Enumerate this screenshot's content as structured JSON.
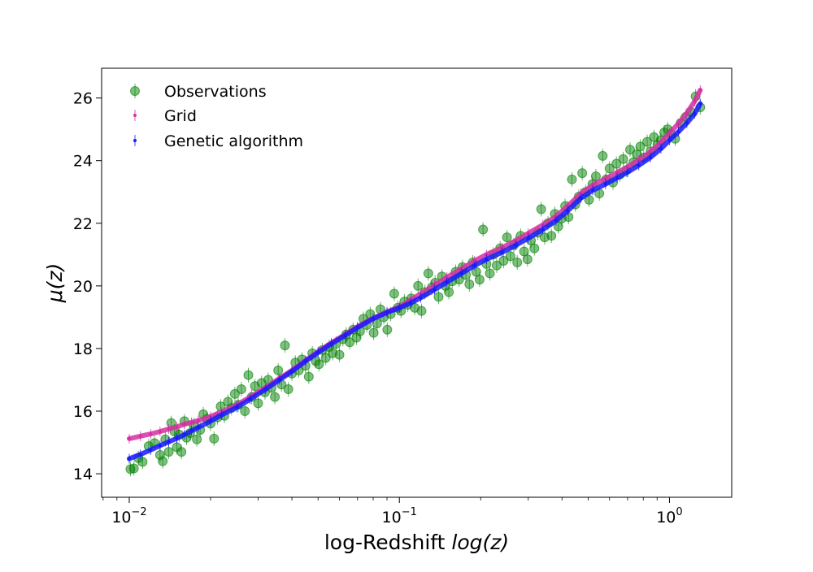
{
  "chart_data": {
    "type": "scatter",
    "xscale": "log",
    "xlabel_text": "log-Redshift ",
    "xlabel_math": "log(z)",
    "ylabel_math": "μ(z)",
    "xlim": [
      0.0079,
      1.7
    ],
    "ylim": [
      13.25,
      26.95
    ],
    "xticks": [
      {
        "value": 0.01,
        "base": "10",
        "exp": "−2"
      },
      {
        "value": 0.1,
        "base": "10",
        "exp": "−1"
      },
      {
        "value": 1.0,
        "base": "10",
        "exp": "0"
      }
    ],
    "yticks": [
      14,
      16,
      18,
      20,
      22,
      24,
      26
    ],
    "legend": {
      "position": "upper left",
      "frame": false
    },
    "series": [
      {
        "name": "Observations",
        "color": "#008000",
        "marker": "circle",
        "points": [
          [
            0.0101,
            14.15
          ],
          [
            0.0104,
            14.17
          ],
          [
            0.0108,
            14.5
          ],
          [
            0.0112,
            14.38
          ],
          [
            0.0118,
            14.88
          ],
          [
            0.0124,
            14.98
          ],
          [
            0.013,
            14.6
          ],
          [
            0.0133,
            14.4
          ],
          [
            0.0136,
            15.1
          ],
          [
            0.014,
            14.7
          ],
          [
            0.0143,
            15.62
          ],
          [
            0.0147,
            15.35
          ],
          [
            0.015,
            14.85
          ],
          [
            0.0153,
            15.25
          ],
          [
            0.0156,
            14.7
          ],
          [
            0.016,
            15.68
          ],
          [
            0.0163,
            15.15
          ],
          [
            0.0168,
            15.3
          ],
          [
            0.0173,
            15.55
          ],
          [
            0.0178,
            15.1
          ],
          [
            0.0183,
            15.4
          ],
          [
            0.0188,
            15.9
          ],
          [
            0.0194,
            15.75
          ],
          [
            0.02,
            15.6
          ],
          [
            0.0206,
            15.12
          ],
          [
            0.0212,
            15.8
          ],
          [
            0.0218,
            16.15
          ],
          [
            0.0225,
            15.85
          ],
          [
            0.0232,
            16.3
          ],
          [
            0.0239,
            16.1
          ],
          [
            0.0246,
            16.55
          ],
          [
            0.0253,
            16.2
          ],
          [
            0.026,
            16.7
          ],
          [
            0.0268,
            16.0
          ],
          [
            0.0276,
            17.15
          ],
          [
            0.0284,
            16.45
          ],
          [
            0.0292,
            16.8
          ],
          [
            0.03,
            16.25
          ],
          [
            0.0309,
            16.9
          ],
          [
            0.0318,
            16.6
          ],
          [
            0.0327,
            17.0
          ],
          [
            0.0336,
            16.75
          ],
          [
            0.0346,
            16.45
          ],
          [
            0.0356,
            17.3
          ],
          [
            0.0366,
            16.85
          ],
          [
            0.0377,
            18.1
          ],
          [
            0.0388,
            16.7
          ],
          [
            0.04,
            17.2
          ],
          [
            0.0412,
            17.55
          ],
          [
            0.0424,
            17.3
          ],
          [
            0.0436,
            17.65
          ],
          [
            0.0449,
            17.45
          ],
          [
            0.0462,
            17.1
          ],
          [
            0.0476,
            17.85
          ],
          [
            0.049,
            17.6
          ],
          [
            0.0504,
            17.5
          ],
          [
            0.0519,
            17.95
          ],
          [
            0.0534,
            17.7
          ],
          [
            0.055,
            18.05
          ],
          [
            0.0566,
            17.85
          ],
          [
            0.0583,
            18.15
          ],
          [
            0.06,
            17.8
          ],
          [
            0.0618,
            18.3
          ],
          [
            0.0636,
            18.45
          ],
          [
            0.0655,
            18.2
          ],
          [
            0.0674,
            18.6
          ],
          [
            0.0694,
            18.35
          ],
          [
            0.0715,
            18.55
          ],
          [
            0.0736,
            18.95
          ],
          [
            0.0758,
            18.75
          ],
          [
            0.078,
            19.1
          ],
          [
            0.0803,
            18.5
          ],
          [
            0.0827,
            18.8
          ],
          [
            0.0851,
            19.25
          ],
          [
            0.0876,
            19.0
          ],
          [
            0.0902,
            18.6
          ],
          [
            0.0929,
            19.1
          ],
          [
            0.0957,
            19.75
          ],
          [
            0.0985,
            19.3
          ],
          [
            0.1014,
            19.2
          ],
          [
            0.1044,
            19.5
          ],
          [
            0.1075,
            19.4
          ],
          [
            0.1107,
            19.6
          ],
          [
            0.114,
            19.3
          ],
          [
            0.1173,
            20.0
          ],
          [
            0.1208,
            19.2
          ],
          [
            0.1243,
            19.8
          ],
          [
            0.128,
            20.4
          ],
          [
            0.1318,
            19.95
          ],
          [
            0.1357,
            20.1
          ],
          [
            0.1397,
            19.65
          ],
          [
            0.1438,
            20.3
          ],
          [
            0.1481,
            20.0
          ],
          [
            0.1525,
            19.8
          ],
          [
            0.157,
            20.15
          ],
          [
            0.1616,
            20.45
          ],
          [
            0.1664,
            20.2
          ],
          [
            0.1713,
            20.6
          ],
          [
            0.1764,
            20.35
          ],
          [
            0.1816,
            20.05
          ],
          [
            0.187,
            20.75
          ],
          [
            0.1925,
            20.45
          ],
          [
            0.1982,
            20.2
          ],
          [
            0.2041,
            21.8
          ],
          [
            0.2101,
            20.7
          ],
          [
            0.2163,
            20.4
          ],
          [
            0.2227,
            21.0
          ],
          [
            0.2293,
            20.65
          ],
          [
            0.2361,
            21.2
          ],
          [
            0.2431,
            20.8
          ],
          [
            0.2503,
            21.55
          ],
          [
            0.2577,
            20.95
          ],
          [
            0.2653,
            21.3
          ],
          [
            0.2732,
            20.75
          ],
          [
            0.2813,
            21.6
          ],
          [
            0.2896,
            21.1
          ],
          [
            0.2981,
            20.85
          ],
          [
            0.307,
            21.45
          ],
          [
            0.316,
            21.2
          ],
          [
            0.3254,
            21.7
          ],
          [
            0.335,
            22.45
          ],
          [
            0.3449,
            21.55
          ],
          [
            0.3551,
            22.0
          ],
          [
            0.3656,
            21.6
          ],
          [
            0.3764,
            22.3
          ],
          [
            0.3876,
            21.9
          ],
          [
            0.399,
            22.15
          ],
          [
            0.4108,
            22.55
          ],
          [
            0.423,
            22.2
          ],
          [
            0.4355,
            23.4
          ],
          [
            0.4484,
            22.6
          ],
          [
            0.4616,
            22.85
          ],
          [
            0.4753,
            23.6
          ],
          [
            0.4893,
            23.0
          ],
          [
            0.5038,
            22.75
          ],
          [
            0.5187,
            23.25
          ],
          [
            0.534,
            23.5
          ],
          [
            0.5498,
            22.95
          ],
          [
            0.5661,
            24.15
          ],
          [
            0.5828,
            23.4
          ],
          [
            0.6001,
            23.75
          ],
          [
            0.6178,
            23.3
          ],
          [
            0.6361,
            23.9
          ],
          [
            0.6549,
            23.55
          ],
          [
            0.6743,
            24.05
          ],
          [
            0.6942,
            23.7
          ],
          [
            0.7147,
            24.35
          ],
          [
            0.7359,
            23.95
          ],
          [
            0.7576,
            24.2
          ],
          [
            0.78,
            24.45
          ],
          [
            0.8031,
            24.1
          ],
          [
            0.8269,
            24.6
          ],
          [
            0.8513,
            24.3
          ],
          [
            0.8765,
            24.75
          ],
          [
            0.9024,
            24.5
          ],
          [
            0.9291,
            24.65
          ],
          [
            0.9566,
            24.9
          ],
          [
            0.9849,
            25.0
          ],
          [
            1.014,
            24.85
          ],
          [
            1.05,
            24.7
          ],
          [
            1.1,
            25.2
          ],
          [
            1.15,
            25.4
          ],
          [
            1.2,
            25.55
          ],
          [
            1.25,
            26.05
          ],
          [
            1.3,
            25.7
          ]
        ]
      },
      {
        "name": "Grid",
        "color": "#d62fa3",
        "marker": "point",
        "points": [
          [
            0.01,
            15.12
          ],
          [
            0.011,
            15.2
          ],
          [
            0.012,
            15.27
          ],
          [
            0.013,
            15.35
          ],
          [
            0.014,
            15.43
          ],
          [
            0.015,
            15.5
          ],
          [
            0.016,
            15.58
          ],
          [
            0.017,
            15.64
          ],
          [
            0.018,
            15.7
          ],
          [
            0.02,
            15.83
          ],
          [
            0.022,
            15.98
          ],
          [
            0.025,
            16.2
          ],
          [
            0.028,
            16.45
          ],
          [
            0.032,
            16.75
          ],
          [
            0.036,
            17.05
          ],
          [
            0.04,
            17.3
          ],
          [
            0.045,
            17.62
          ],
          [
            0.05,
            17.9
          ],
          [
            0.056,
            18.18
          ],
          [
            0.063,
            18.45
          ],
          [
            0.07,
            18.7
          ],
          [
            0.08,
            18.97
          ],
          [
            0.09,
            19.17
          ],
          [
            0.1,
            19.33
          ],
          [
            0.11,
            19.55
          ],
          [
            0.12,
            19.75
          ],
          [
            0.135,
            20.02
          ],
          [
            0.15,
            20.28
          ],
          [
            0.17,
            20.55
          ],
          [
            0.19,
            20.8
          ],
          [
            0.21,
            21.0
          ],
          [
            0.24,
            21.22
          ],
          [
            0.27,
            21.45
          ],
          [
            0.3,
            21.68
          ],
          [
            0.34,
            21.95
          ],
          [
            0.38,
            22.22
          ],
          [
            0.42,
            22.55
          ],
          [
            0.47,
            22.95
          ],
          [
            0.52,
            23.22
          ],
          [
            0.58,
            23.42
          ],
          [
            0.64,
            23.62
          ],
          [
            0.7,
            23.8
          ],
          [
            0.77,
            24.02
          ],
          [
            0.85,
            24.28
          ],
          [
            0.93,
            24.58
          ],
          [
            1.0,
            24.88
          ],
          [
            1.08,
            25.18
          ],
          [
            1.16,
            25.52
          ],
          [
            1.24,
            25.9
          ],
          [
            1.3,
            26.25
          ]
        ]
      },
      {
        "name": "Genetic algorithm",
        "color": "#1a1aff",
        "marker": "point",
        "points": [
          [
            0.01,
            14.48
          ],
          [
            0.011,
            14.62
          ],
          [
            0.012,
            14.76
          ],
          [
            0.013,
            14.9
          ],
          [
            0.014,
            15.02
          ],
          [
            0.015,
            15.13
          ],
          [
            0.016,
            15.25
          ],
          [
            0.017,
            15.37
          ],
          [
            0.018,
            15.48
          ],
          [
            0.02,
            15.68
          ],
          [
            0.022,
            15.88
          ],
          [
            0.025,
            16.12
          ],
          [
            0.028,
            16.38
          ],
          [
            0.032,
            16.7
          ],
          [
            0.036,
            17.0
          ],
          [
            0.04,
            17.27
          ],
          [
            0.045,
            17.6
          ],
          [
            0.05,
            17.87
          ],
          [
            0.056,
            18.15
          ],
          [
            0.063,
            18.42
          ],
          [
            0.07,
            18.67
          ],
          [
            0.08,
            18.95
          ],
          [
            0.09,
            19.15
          ],
          [
            0.1,
            19.3
          ],
          [
            0.11,
            19.45
          ],
          [
            0.12,
            19.62
          ],
          [
            0.135,
            19.88
          ],
          [
            0.15,
            20.12
          ],
          [
            0.17,
            20.4
          ],
          [
            0.19,
            20.65
          ],
          [
            0.21,
            20.85
          ],
          [
            0.24,
            21.07
          ],
          [
            0.27,
            21.3
          ],
          [
            0.3,
            21.52
          ],
          [
            0.34,
            21.8
          ],
          [
            0.38,
            22.08
          ],
          [
            0.42,
            22.4
          ],
          [
            0.47,
            22.8
          ],
          [
            0.52,
            23.05
          ],
          [
            0.58,
            23.25
          ],
          [
            0.64,
            23.45
          ],
          [
            0.7,
            23.63
          ],
          [
            0.77,
            23.85
          ],
          [
            0.85,
            24.1
          ],
          [
            0.93,
            24.38
          ],
          [
            1.0,
            24.65
          ],
          [
            1.08,
            24.92
          ],
          [
            1.16,
            25.2
          ],
          [
            1.24,
            25.5
          ],
          [
            1.3,
            25.82
          ]
        ]
      }
    ]
  }
}
